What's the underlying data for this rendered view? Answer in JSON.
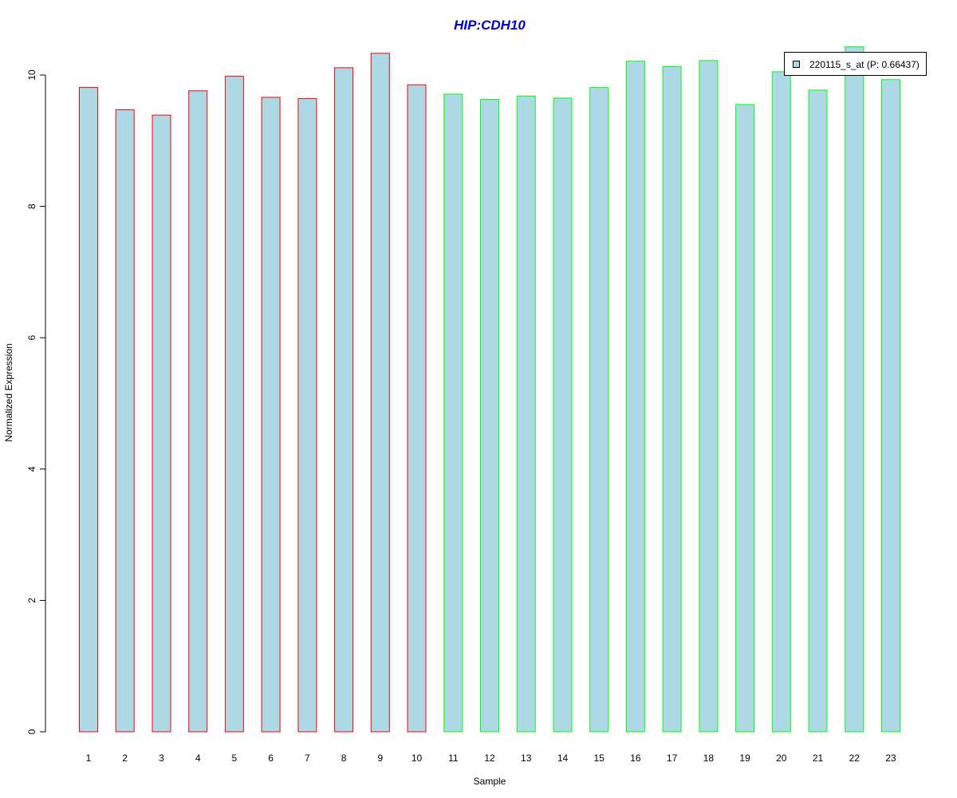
{
  "chart_data": {
    "type": "bar",
    "title": "HIP:CDH10",
    "xlabel": "Sample",
    "ylabel": "Normalized Expression",
    "ylim": [
      0,
      10.5
    ],
    "yticks": [
      0,
      2,
      4,
      6,
      8,
      10
    ],
    "categories": [
      "1",
      "2",
      "3",
      "4",
      "5",
      "6",
      "7",
      "8",
      "9",
      "10",
      "11",
      "12",
      "13",
      "14",
      "15",
      "16",
      "17",
      "18",
      "19",
      "20",
      "21",
      "22",
      "23"
    ],
    "series": [
      {
        "name": "220115_s_at (P: 0.66437)",
        "values": [
          9.81,
          9.47,
          9.39,
          9.76,
          9.98,
          9.66,
          9.64,
          10.11,
          10.33,
          9.85,
          9.71,
          9.63,
          9.68,
          9.65,
          9.81,
          10.21,
          10.13,
          10.22,
          9.55,
          10.05,
          9.77,
          10.43,
          9.93
        ]
      }
    ],
    "bar_fill_color": "#add8e6",
    "bar_border_colors": [
      "#ff0000",
      "#ff0000",
      "#ff0000",
      "#ff0000",
      "#ff0000",
      "#ff0000",
      "#ff0000",
      "#ff0000",
      "#ff0000",
      "#ff0000",
      "#00ff00",
      "#00ff00",
      "#00ff00",
      "#00ff00",
      "#00ff00",
      "#00ff00",
      "#00ff00",
      "#00ff00",
      "#00ff00",
      "#00ff00",
      "#00ff00",
      "#00ff00",
      "#00ff00"
    ],
    "title_color": "#0000cd",
    "grid": false,
    "legend_position": "top-right"
  }
}
